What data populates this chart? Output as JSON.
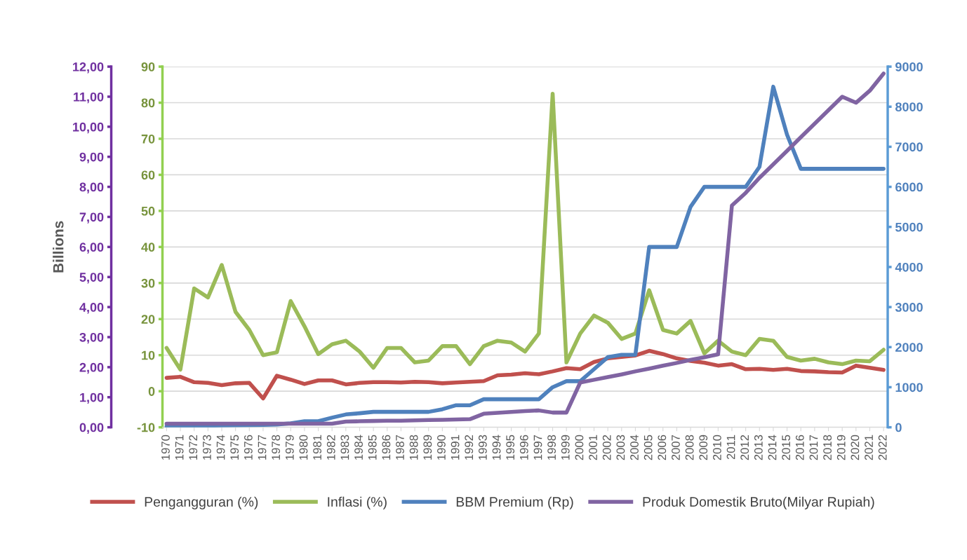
{
  "chart_data": {
    "type": "line",
    "categories": [
      "1970",
      "1971",
      "1972",
      "1973",
      "1974",
      "1975",
      "1976",
      "1977",
      "1978",
      "1979",
      "1980",
      "1981",
      "1982",
      "1983",
      "1984",
      "1985",
      "1986",
      "1987",
      "1988",
      "1989",
      "1990",
      "1991",
      "1992",
      "1993",
      "1994",
      "1995",
      "1996",
      "1997",
      "1998",
      "1999",
      "2000",
      "2001",
      "2002",
      "2003",
      "2004",
      "2005",
      "2006",
      "2007",
      "2008",
      "2009",
      "2010",
      "2011",
      "2012",
      "2013",
      "2014",
      "2015",
      "2016",
      "2017",
      "2018",
      "2019",
      "2020",
      "2021",
      "2022"
    ],
    "series": [
      {
        "name": "Pengangguran (%)",
        "color": "#c0504d",
        "axis": "y",
        "values": [
          3.7,
          4.0,
          2.5,
          2.3,
          1.7,
          2.2,
          2.3,
          -2.0,
          4.3,
          3.2,
          2.0,
          3.0,
          3.0,
          1.9,
          2.3,
          2.5,
          2.5,
          2.4,
          2.6,
          2.5,
          2.2,
          2.4,
          2.6,
          2.8,
          4.4,
          4.6,
          5.0,
          4.7,
          5.5,
          6.4,
          6.1,
          8.1,
          9.1,
          9.5,
          9.9,
          11.2,
          10.3,
          9.1,
          8.4,
          7.9,
          7.1,
          7.5,
          6.1,
          6.2,
          5.9,
          6.2,
          5.6,
          5.5,
          5.3,
          5.2,
          7.1,
          6.5,
          5.9
        ]
      },
      {
        "name": "Inflasi (%)",
        "color": "#9bbb59",
        "axis": "y",
        "values": [
          12,
          6,
          28.5,
          26,
          35,
          22,
          17,
          10,
          10.8,
          25,
          18,
          10.3,
          13,
          14,
          11,
          6.5,
          12,
          12,
          8,
          8.5,
          12.5,
          12.5,
          7.5,
          12.5,
          14,
          13.5,
          11,
          16,
          82.5,
          8,
          16,
          21,
          19,
          14.5,
          16,
          28,
          17,
          16,
          19.5,
          10.5,
          14,
          11,
          10,
          14.5,
          14,
          9.5,
          8.5,
          9,
          8,
          7.5,
          8.5,
          8.3,
          11.5
        ]
      },
      {
        "name": "BBM Premium (Rp)",
        "color": "#4f81bd",
        "axis": "y2",
        "values": [
          25,
          30,
          35,
          40,
          45,
          50,
          55,
          60,
          70,
          100,
          150,
          150,
          240,
          320,
          350,
          385,
          385,
          385,
          385,
          385,
          450,
          550,
          550,
          700,
          700,
          700,
          700,
          700,
          1000,
          1150,
          1150,
          1450,
          1750,
          1810,
          1810,
          4500,
          4500,
          4500,
          5500,
          6000,
          6000,
          6000,
          6000,
          6500,
          8500,
          7300,
          6450,
          6450,
          6450,
          6450,
          6450,
          6450,
          6450
        ]
      },
      {
        "name": "Produk Domestik Bruto(Milyar Rupiah)",
        "color": "#8064a2",
        "axis": "y3",
        "values": [
          0.12,
          0.12,
          0.12,
          0.12,
          0.12,
          0.12,
          0.12,
          0.12,
          0.12,
          0.12,
          0.12,
          0.12,
          0.12,
          0.19,
          0.2,
          0.21,
          0.22,
          0.22,
          0.23,
          0.24,
          0.25,
          0.26,
          0.27,
          0.45,
          0.48,
          0.51,
          0.54,
          0.56,
          0.49,
          0.49,
          1.49,
          1.58,
          1.67,
          1.76,
          1.86,
          1.95,
          2.05,
          2.14,
          2.24,
          2.33,
          2.43,
          7.38,
          7.8,
          8.3,
          8.75,
          9.2,
          9.65,
          10.1,
          10.55,
          11.0,
          10.8,
          11.2,
          11.77
        ]
      }
    ],
    "ylim": [
      -10,
      90
    ],
    "yticks": [
      -10,
      0,
      10,
      20,
      30,
      40,
      50,
      60,
      70,
      80,
      90
    ],
    "y2lim": [
      0,
      9000
    ],
    "y2ticks": [
      0,
      1000,
      2000,
      3000,
      4000,
      5000,
      6000,
      7000,
      8000,
      9000
    ],
    "y3lim": [
      0,
      12
    ],
    "y3ticks": [
      {
        "value": 0,
        "label": "0,00"
      },
      {
        "value": 1,
        "label": "1,00"
      },
      {
        "value": 2,
        "label": "2,00"
      },
      {
        "value": 3,
        "label": "3,00"
      },
      {
        "value": 4,
        "label": "4,00"
      },
      {
        "value": 5,
        "label": "5,00"
      },
      {
        "value": 6,
        "label": "6,00"
      },
      {
        "value": 7,
        "label": "7,00"
      },
      {
        "value": 8,
        "label": "8,00"
      },
      {
        "value": 9,
        "label": "9,00"
      },
      {
        "value": 10,
        "label": "10,00"
      },
      {
        "value": 11,
        "label": "11,00"
      },
      {
        "value": 12,
        "label": "12,00"
      }
    ],
    "y3label": "Billions",
    "grid": "y",
    "legend": "bottom"
  }
}
